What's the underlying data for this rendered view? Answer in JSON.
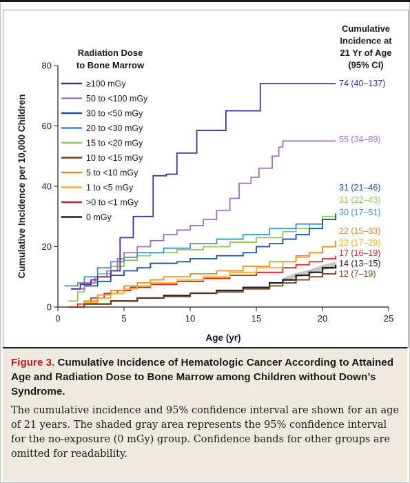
{
  "caption": {
    "label": "Figure 3.",
    "title": "Cumulative Incidence of Hematologic Cancer According to Attained Age and Radiation Dose to Bone Marrow among Children without Down’s Syndrome.",
    "body": "The cumulative incidence and 95% confidence interval are shown for an age of 21 years. The shaded gray area represents the 95% confidence interval for the no-exposure (0 mGy) group. Confidence bands for other groups are omitted for readability."
  },
  "chart_data": {
    "type": "line",
    "step": true,
    "xlabel": "Age (yr)",
    "ylabel": "Cumulative Incidence per 10,000 Children",
    "xlim": [
      0,
      25
    ],
    "ylim": [
      0,
      80
    ],
    "xticks": [
      0,
      5,
      10,
      15,
      20,
      25
    ],
    "yticks": [
      0,
      20,
      40,
      60,
      80
    ],
    "grid": false,
    "legend_title": "Radiation Dose to Bone Marrow",
    "legend_position": "top-left",
    "right_label_title": "Cumulative Incidence at 21 Yr of Age (95% CI)",
    "series": [
      {
        "name": "≥100 mGy",
        "color": "#4b2c8e",
        "label": "74 (40–137)",
        "points": [
          [
            1,
            6
          ],
          [
            1.7,
            7.5
          ],
          [
            2.5,
            9
          ],
          [
            3,
            10
          ],
          [
            4,
            12
          ],
          [
            4.7,
            23
          ],
          [
            5.7,
            30
          ],
          [
            7.2,
            43.5
          ],
          [
            8.2,
            44
          ],
          [
            9,
            51
          ],
          [
            10.5,
            58.5
          ],
          [
            12.7,
            65
          ],
          [
            15.3,
            74
          ],
          [
            21,
            74
          ]
        ]
      },
      {
        "name": "50 to <100 mGy",
        "color": "#9a72bf",
        "label": "55 (34–89)",
        "points": [
          [
            1,
            6
          ],
          [
            2,
            8
          ],
          [
            2.8,
            10
          ],
          [
            3.7,
            12
          ],
          [
            4.5,
            16
          ],
          [
            5,
            18
          ],
          [
            6,
            20
          ],
          [
            7,
            22
          ],
          [
            8,
            24
          ],
          [
            9,
            25.5
          ],
          [
            10,
            27
          ],
          [
            11,
            29
          ],
          [
            12,
            32
          ],
          [
            13,
            36
          ],
          [
            13.7,
            41
          ],
          [
            14.6,
            43
          ],
          [
            15.2,
            46
          ],
          [
            16.2,
            50
          ],
          [
            16.7,
            53
          ],
          [
            17,
            55
          ],
          [
            21,
            55
          ]
        ]
      },
      {
        "name": "30 to <50 mGy",
        "color": "#14509a",
        "label": "31 (21–46)",
        "points": [
          [
            1,
            6
          ],
          [
            2,
            7
          ],
          [
            3,
            8.5
          ],
          [
            4,
            10.5
          ],
          [
            5,
            12
          ],
          [
            6,
            13
          ],
          [
            7,
            14.5
          ],
          [
            9,
            15
          ],
          [
            10,
            16
          ],
          [
            12,
            17
          ],
          [
            14,
            18
          ],
          [
            15,
            20
          ],
          [
            16,
            21
          ],
          [
            17,
            22.5
          ],
          [
            18,
            24
          ],
          [
            19,
            26
          ],
          [
            20,
            29
          ],
          [
            21,
            31
          ]
        ]
      },
      {
        "name": "20 to <30 mGy",
        "color": "#3c8fc8",
        "label": "30 (17–51)",
        "points": [
          [
            0.5,
            7
          ],
          [
            1.5,
            8
          ],
          [
            2,
            10
          ],
          [
            3,
            13
          ],
          [
            4,
            15
          ],
          [
            5,
            16.5
          ],
          [
            6,
            18
          ],
          [
            8,
            19.5
          ],
          [
            10,
            21
          ],
          [
            12,
            22.5
          ],
          [
            14,
            24
          ],
          [
            16,
            26
          ],
          [
            18,
            27.5
          ],
          [
            20,
            29
          ],
          [
            21,
            30
          ]
        ]
      },
      {
        "name": "15 to <20 mGy",
        "color": "#93c25f",
        "label": "31 (22–43)",
        "points": [
          [
            0.8,
            2
          ],
          [
            1.5,
            5
          ],
          [
            2,
            8
          ],
          [
            3,
            11
          ],
          [
            4,
            13.5
          ],
          [
            5,
            15.5
          ],
          [
            6,
            17
          ],
          [
            7,
            18
          ],
          [
            9,
            19
          ],
          [
            11,
            20
          ],
          [
            13,
            21.5
          ],
          [
            15,
            23
          ],
          [
            17,
            25
          ],
          [
            18,
            26
          ],
          [
            19,
            27.5
          ],
          [
            20,
            30
          ],
          [
            21,
            31
          ]
        ]
      },
      {
        "name": "10 to <15 mGy",
        "color": "#6b3f1d",
        "label": "12 (7–19)",
        "points": [
          [
            0.8,
            0
          ],
          [
            2,
            1
          ],
          [
            4,
            2
          ],
          [
            6,
            3
          ],
          [
            8,
            3.5
          ],
          [
            10,
            4.5
          ],
          [
            12,
            5
          ],
          [
            14,
            6
          ],
          [
            16,
            7
          ],
          [
            17,
            8
          ],
          [
            18,
            9
          ],
          [
            19,
            10
          ],
          [
            20,
            11
          ],
          [
            21,
            12
          ]
        ]
      },
      {
        "name": "5 to <10 mGy",
        "color": "#e8892b",
        "label": "22 (15–33)",
        "points": [
          [
            0.8,
            0
          ],
          [
            2,
            2
          ],
          [
            3,
            4
          ],
          [
            4,
            5.5
          ],
          [
            5,
            7
          ],
          [
            6,
            8
          ],
          [
            7,
            9
          ],
          [
            8,
            10
          ],
          [
            10,
            11
          ],
          [
            12,
            12
          ],
          [
            14,
            13.5
          ],
          [
            16,
            15
          ],
          [
            18,
            17
          ],
          [
            19,
            18
          ],
          [
            20,
            20
          ],
          [
            21,
            22
          ]
        ]
      },
      {
        "name": "1 to <5 mGy",
        "color": "#f2b51c",
        "label": "22 (17–29)",
        "points": [
          [
            0.8,
            0
          ],
          [
            2,
            1.5
          ],
          [
            3,
            3
          ],
          [
            4,
            4.5
          ],
          [
            5,
            6
          ],
          [
            6,
            7
          ],
          [
            7,
            8
          ],
          [
            9,
            9
          ],
          [
            11,
            10
          ],
          [
            13,
            11.5
          ],
          [
            15,
            13
          ],
          [
            17,
            15
          ],
          [
            18,
            16.5
          ],
          [
            19,
            18
          ],
          [
            20,
            20
          ],
          [
            21,
            22
          ]
        ]
      },
      {
        "name": ">0 to <1 mGy",
        "color": "#c62a28",
        "label": "17 (16–19)",
        "points": [
          [
            0.8,
            0
          ],
          [
            1.5,
            1
          ],
          [
            2.5,
            3
          ],
          [
            3.5,
            4.5
          ],
          [
            4.5,
            5.5
          ],
          [
            5.5,
            6.5
          ],
          [
            7,
            7.5
          ],
          [
            9,
            8.5
          ],
          [
            11,
            9.5
          ],
          [
            13,
            10.5
          ],
          [
            15,
            11.5
          ],
          [
            17,
            13
          ],
          [
            18,
            14
          ],
          [
            19,
            15
          ],
          [
            20,
            16
          ],
          [
            21,
            17
          ]
        ]
      },
      {
        "name": "0 mGy",
        "color": "#1a1a1a",
        "label": "14 (13–15)",
        "ci_band": true,
        "points": [
          [
            0.8,
            0
          ],
          [
            2,
            1
          ],
          [
            4,
            2
          ],
          [
            6,
            3
          ],
          [
            8,
            3.8
          ],
          [
            10,
            4.6
          ],
          [
            12,
            5.5
          ],
          [
            14,
            6.5
          ],
          [
            16,
            8
          ],
          [
            17,
            9
          ],
          [
            18,
            10.5
          ],
          [
            19,
            11.5
          ],
          [
            20,
            13
          ],
          [
            21,
            14
          ]
        ]
      }
    ]
  }
}
